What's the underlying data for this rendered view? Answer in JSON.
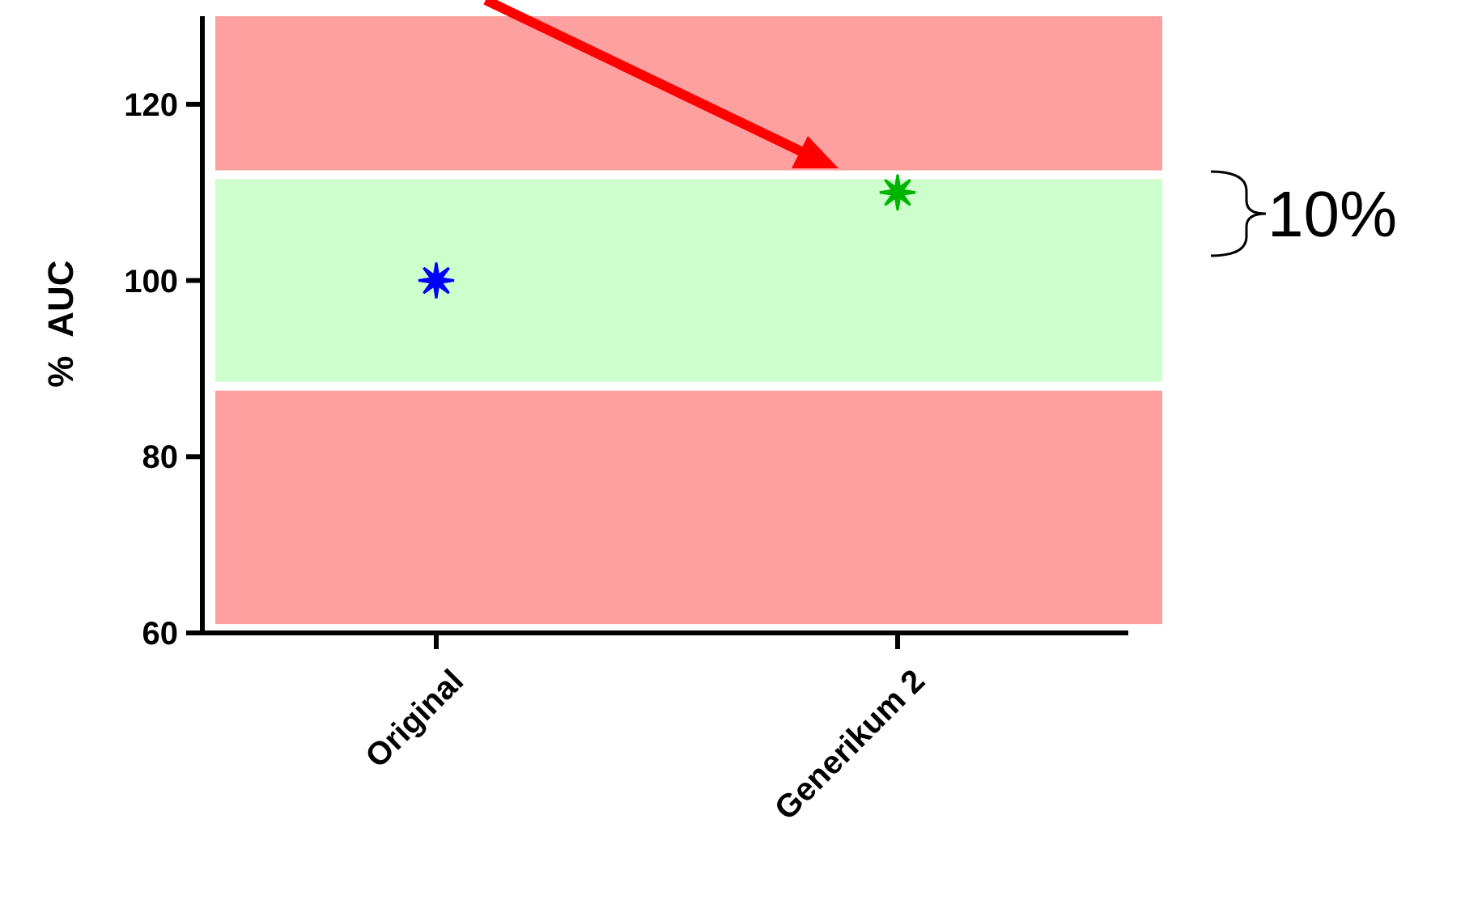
{
  "chart_data": {
    "type": "scatter",
    "ylabel": "%  AUC",
    "categories": [
      "Original",
      "Generikum 2"
    ],
    "values": [
      100,
      110
    ],
    "colors": [
      "#0000ff",
      "#00b400"
    ],
    "marker": "star",
    "ylim": [
      60,
      130
    ],
    "yticks": [
      60,
      80,
      100,
      120
    ],
    "bands": [
      {
        "axis": "y",
        "from": 61,
        "to": 87.5,
        "color": "#ffa0a0"
      },
      {
        "axis": "y",
        "from": 88.5,
        "to": 111.5,
        "color": "#ccffcc"
      },
      {
        "axis": "y",
        "from": 112.5,
        "to": 130,
        "color": "#ffa0a0"
      }
    ],
    "annotations": [
      "10%"
    ]
  }
}
